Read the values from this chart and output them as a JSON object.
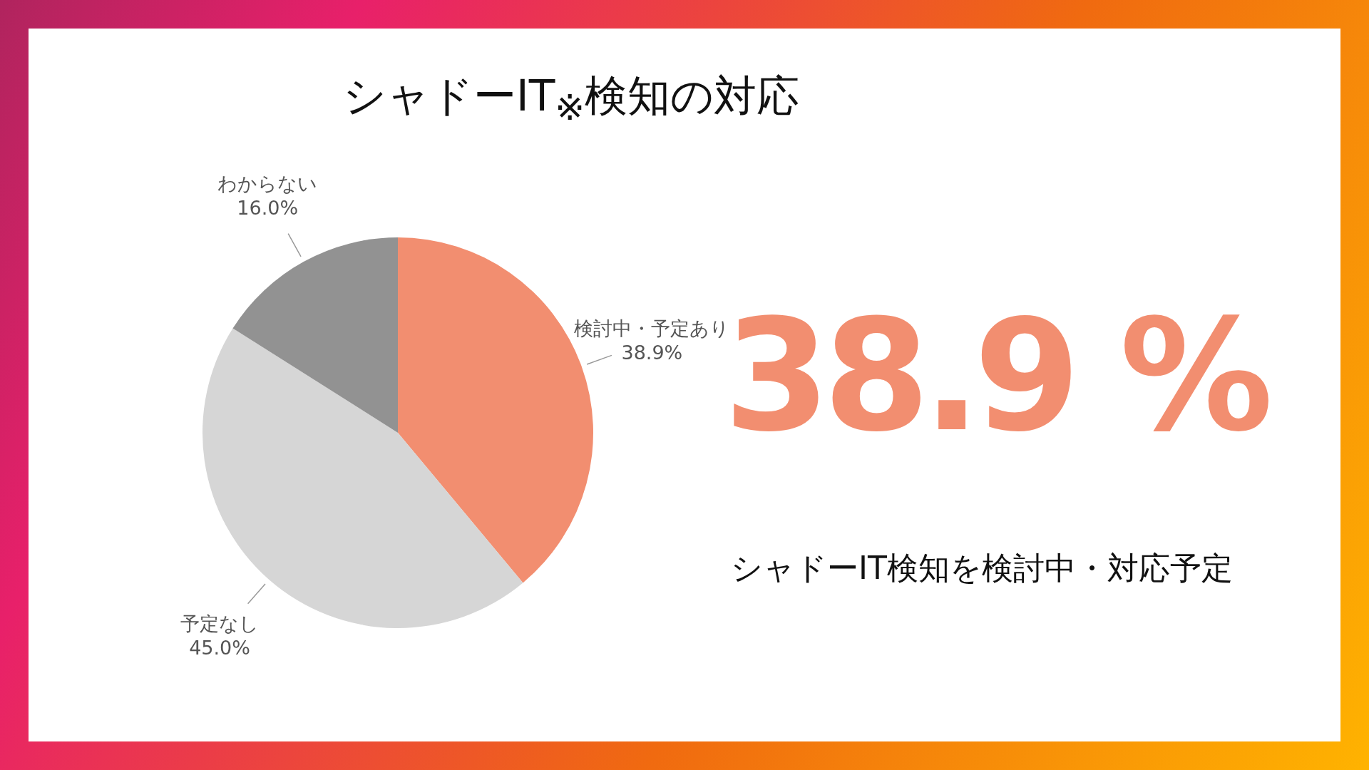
{
  "chart_data": {
    "type": "pie",
    "title": "シャドーIT$_{※}$検知の対応",
    "categories": [
      "検討中・予定あり",
      "予定なし",
      "わからない"
    ],
    "values": [
      38.9,
      45.0,
      16.0
    ],
    "value_labels": [
      "38.9%",
      "45.0%",
      "16.0%"
    ],
    "colors": [
      "#f28e70",
      "#d6d6d6",
      "#929292"
    ],
    "annotations": [
      "38.9 %",
      "シャドーIT検知を検討中・対応予定"
    ]
  }
}
